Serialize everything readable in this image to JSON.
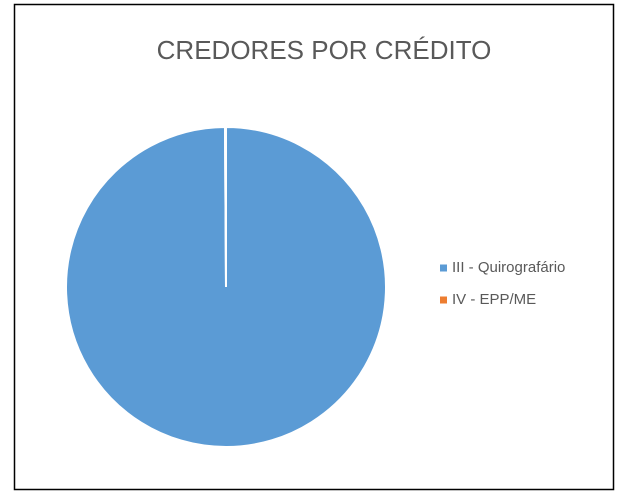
{
  "chart_data": {
    "type": "pie",
    "title": "CREDORES POR CRÉDITO",
    "categories": [
      "III - Quirografário",
      "IV - EPP/ME"
    ],
    "values": [
      99.9,
      0.1
    ],
    "colors": [
      "#5b9bd5",
      "#ed7d31"
    ],
    "legend": "right"
  }
}
